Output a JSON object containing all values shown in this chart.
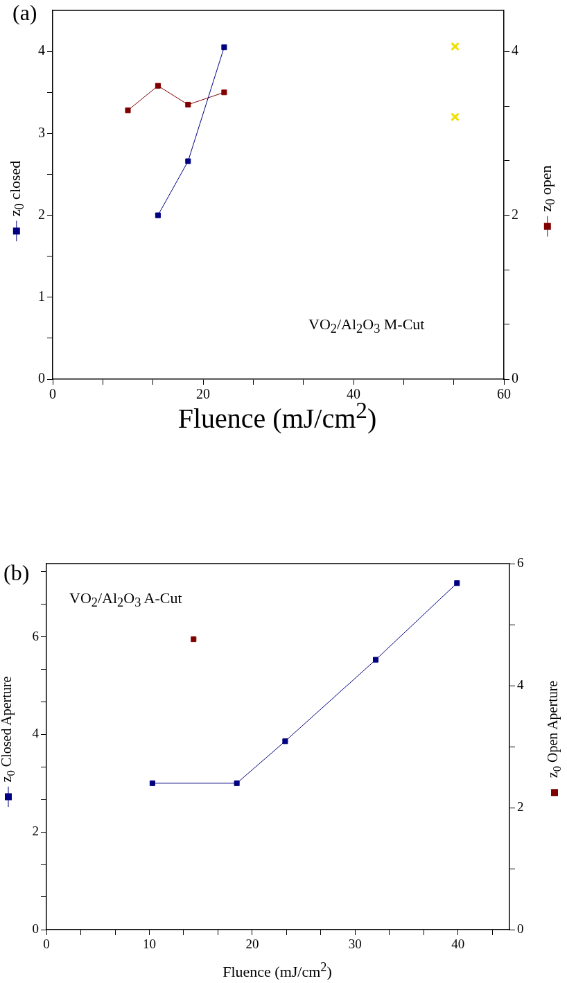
{
  "chart_data": [
    {
      "type": "line",
      "xlabel": "Fluence (mJ/cm$^{2}$)",
      "ylabel": "z$_{0}$ closed",
      "y2label": "z$_{0}$ open",
      "annotations": [
        "(a)",
        "VO$_{2}$/Al$_{2}$O$_{3}$ M-Cut"
      ],
      "xlim": [
        0,
        60
      ],
      "xticks": [
        0,
        {
          "value": 6.67,
          "label": null
        },
        {
          "value": 13.33,
          "label": null
        },
        20,
        {
          "value": 26.67,
          "label": null
        },
        {
          "value": 33.33,
          "label": null
        },
        40,
        {
          "value": 46.67,
          "label": null
        },
        {
          "value": 53.33,
          "label": null
        },
        60
      ],
      "ylim": [
        0,
        4.5
      ],
      "yticks": [
        0,
        {
          "value": 0.5,
          "label": null
        },
        1,
        {
          "value": 1.5,
          "label": null
        },
        2,
        {
          "value": 2.5,
          "label": null
        },
        3,
        {
          "value": 3.5,
          "label": null
        },
        4
      ],
      "y2lim": [
        0,
        4.5
      ],
      "y2ticks": [
        0,
        {
          "value": 0.67,
          "label": null
        },
        {
          "value": 1.33,
          "label": null
        },
        2,
        {
          "value": 2.67,
          "label": null
        },
        {
          "value": 3.33,
          "label": null
        },
        4
      ],
      "series": [
        {
          "color": "#000080",
          "marker": "square",
          "x": [
            14,
            18,
            22.8
          ],
          "values": [
            2.0,
            2.66,
            4.05
          ]
        },
        {
          "axis": "y2",
          "color": "#800000",
          "marker": "square",
          "x": [
            10,
            14,
            18,
            22.8
          ],
          "values": [
            3.28,
            3.58,
            3.35,
            3.5
          ]
        },
        {
          "type": "scatter",
          "color": "#f0e000",
          "marker": "cross",
          "x": [
            53.5,
            53.5
          ],
          "values": [
            4.06,
            3.2
          ]
        }
      ]
    },
    {
      "type": "line",
      "xlabel": "Fluence (mJ/cm$^{2}$)",
      "ylabel": "z$_{0}$ Closed Aperture",
      "y2label": "z$_{0}$ Open Aperture",
      "annotations": [
        "(b)",
        "VO$_{2}$/Al$_{2}$O$_{3}$ A-Cut"
      ],
      "xlim": [
        0,
        45
      ],
      "xticks": [
        0,
        {
          "value": 3.33,
          "label": null
        },
        {
          "value": 6.67,
          "label": null
        },
        10,
        {
          "value": 13.33,
          "label": null
        },
        {
          "value": 16.67,
          "label": null
        },
        20,
        {
          "value": 23.33,
          "label": null
        },
        {
          "value": 26.67,
          "label": null
        },
        30,
        {
          "value": 33.33,
          "label": null
        },
        {
          "value": 36.67,
          "label": null
        },
        40,
        {
          "value": 43.33,
          "label": null
        }
      ],
      "ylim": [
        0,
        7.5
      ],
      "yticks": [
        0,
        {
          "value": 0.67,
          "label": null
        },
        {
          "value": 1.33,
          "label": null
        },
        2,
        {
          "value": 2.67,
          "label": null
        },
        {
          "value": 3.33,
          "label": null
        },
        4,
        {
          "value": 4.67,
          "label": null
        },
        {
          "value": 5.33,
          "label": null
        },
        6,
        {
          "value": 6.67,
          "label": null
        },
        {
          "value": 7.33,
          "label": null
        }
      ],
      "y2lim": [
        0,
        6
      ],
      "y2ticks": [
        0,
        {
          "value": 1,
          "label": null
        },
        2,
        {
          "value": 3,
          "label": null
        },
        4,
        {
          "value": 5,
          "label": null
        },
        6
      ],
      "series": [
        {
          "color": "#000080",
          "marker": "square",
          "x": [
            10.3,
            18.5,
            23.2,
            32,
            39.9
          ],
          "values": [
            3.0,
            3.0,
            3.86,
            5.53,
            7.1
          ]
        },
        {
          "type": "scatter",
          "axis": "y2",
          "color": "#800000",
          "marker": "square",
          "x": [
            14.3
          ],
          "values": [
            4.76
          ]
        }
      ]
    }
  ]
}
